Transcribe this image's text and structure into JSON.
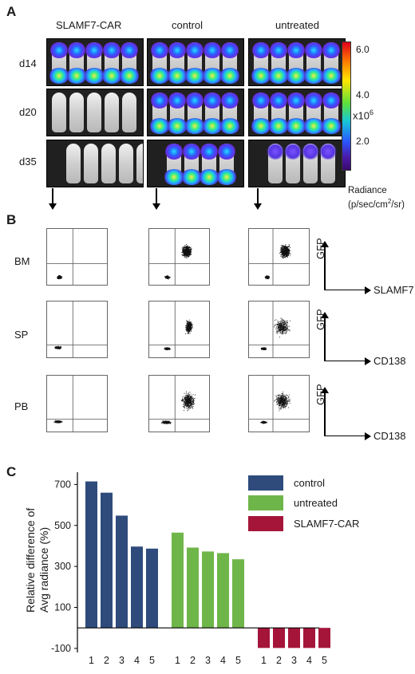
{
  "panel_a": {
    "letter": "A",
    "columns": [
      "SLAMF7-CAR",
      "control",
      "untreated"
    ],
    "rows": [
      "d14",
      "d20",
      "d35"
    ],
    "colorbar": {
      "ticks": [
        "6.0",
        "4.0",
        "2.0"
      ],
      "multiplier": "x10",
      "exponent": "6",
      "title_line1": "Radiance",
      "title_line2_pre": "(p/sec/cm",
      "title_line2_sup": "2",
      "title_line2_post": "/sr)",
      "colors": [
        "#e1001b",
        "#ffe600",
        "#5cdf3c",
        "#16c7d8",
        "#2a55ff",
        "#4b19a8"
      ]
    }
  },
  "panel_b": {
    "letter": "B",
    "rows": [
      {
        "tissue": "BM",
        "y_axis": "GFP",
        "x_axis": "SLAMF7"
      },
      {
        "tissue": "SP",
        "y_axis": "GFP",
        "x_axis": "CD138"
      },
      {
        "tissue": "PB",
        "y_axis": "GFP",
        "x_axis": "CD138"
      }
    ]
  },
  "panel_c": {
    "letter": "C",
    "ylabel_line1": "Relative difference of",
    "ylabel_line2": "Avg radiance (%)",
    "legend": [
      {
        "name": "control",
        "color": "#2e4b7c"
      },
      {
        "name": "untreated",
        "color": "#6fb64a"
      },
      {
        "name": "SLAMF7-CAR",
        "color": "#a5153a"
      }
    ]
  },
  "chart_data": {
    "type": "bar",
    "title": "",
    "xlabel": "",
    "ylabel": "Relative difference of Avg radiance (%)",
    "ylim": [
      -120,
      760
    ],
    "yticks": [
      -100,
      100,
      300,
      500,
      700
    ],
    "series": [
      {
        "name": "control",
        "categories": [
          "1",
          "2",
          "3",
          "4",
          "5"
        ],
        "values": [
          715,
          660,
          548,
          397,
          387
        ],
        "color": "#2e4b7c"
      },
      {
        "name": "untreated",
        "categories": [
          "1",
          "2",
          "3",
          "4",
          "5"
        ],
        "values": [
          465,
          392,
          373,
          365,
          335
        ],
        "color": "#6fb64a"
      },
      {
        "name": "SLAMF7-CAR",
        "categories": [
          "1",
          "2",
          "3",
          "4",
          "5"
        ],
        "values": [
          -98,
          -98,
          -98,
          -98,
          -98
        ],
        "color": "#a5153a"
      }
    ]
  }
}
